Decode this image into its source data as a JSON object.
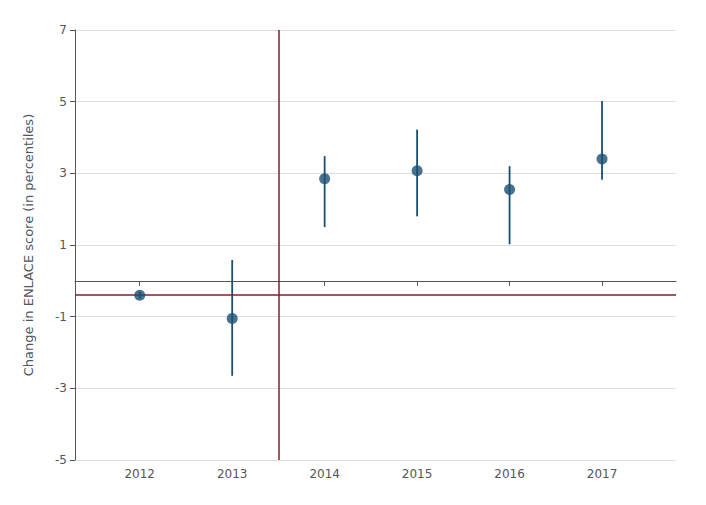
{
  "chart_data": {
    "type": "scatter",
    "x": [
      2012,
      2013,
      2014,
      2015,
      2016,
      2017
    ],
    "values": [
      -0.4,
      -1.05,
      2.85,
      3.07,
      2.55,
      3.4
    ],
    "ci_lower": [
      -0.5,
      -2.65,
      1.5,
      1.8,
      1.02,
      2.82
    ],
    "ci_upper": [
      -0.3,
      0.58,
      3.48,
      4.22,
      3.2,
      5.02
    ],
    "color": "#1b4f72",
    "marker": "circle",
    "reference_lines": [
      {
        "axis": "y",
        "value": -0.4,
        "color": "#8b1a2e"
      },
      {
        "axis": "x",
        "value": 2013.5,
        "color": "#8b1a2e"
      }
    ],
    "ylabel": "Change in ENLACE score (in percentiles)",
    "xlim": [
      2011.3,
      2017.8
    ],
    "xticks": [
      2012,
      2013,
      2014,
      2015,
      2016,
      2017
    ],
    "ylim": [
      -5,
      7
    ],
    "yticks": [
      -5,
      -3,
      -1,
      1,
      3,
      5,
      7
    ],
    "grid": true
  }
}
